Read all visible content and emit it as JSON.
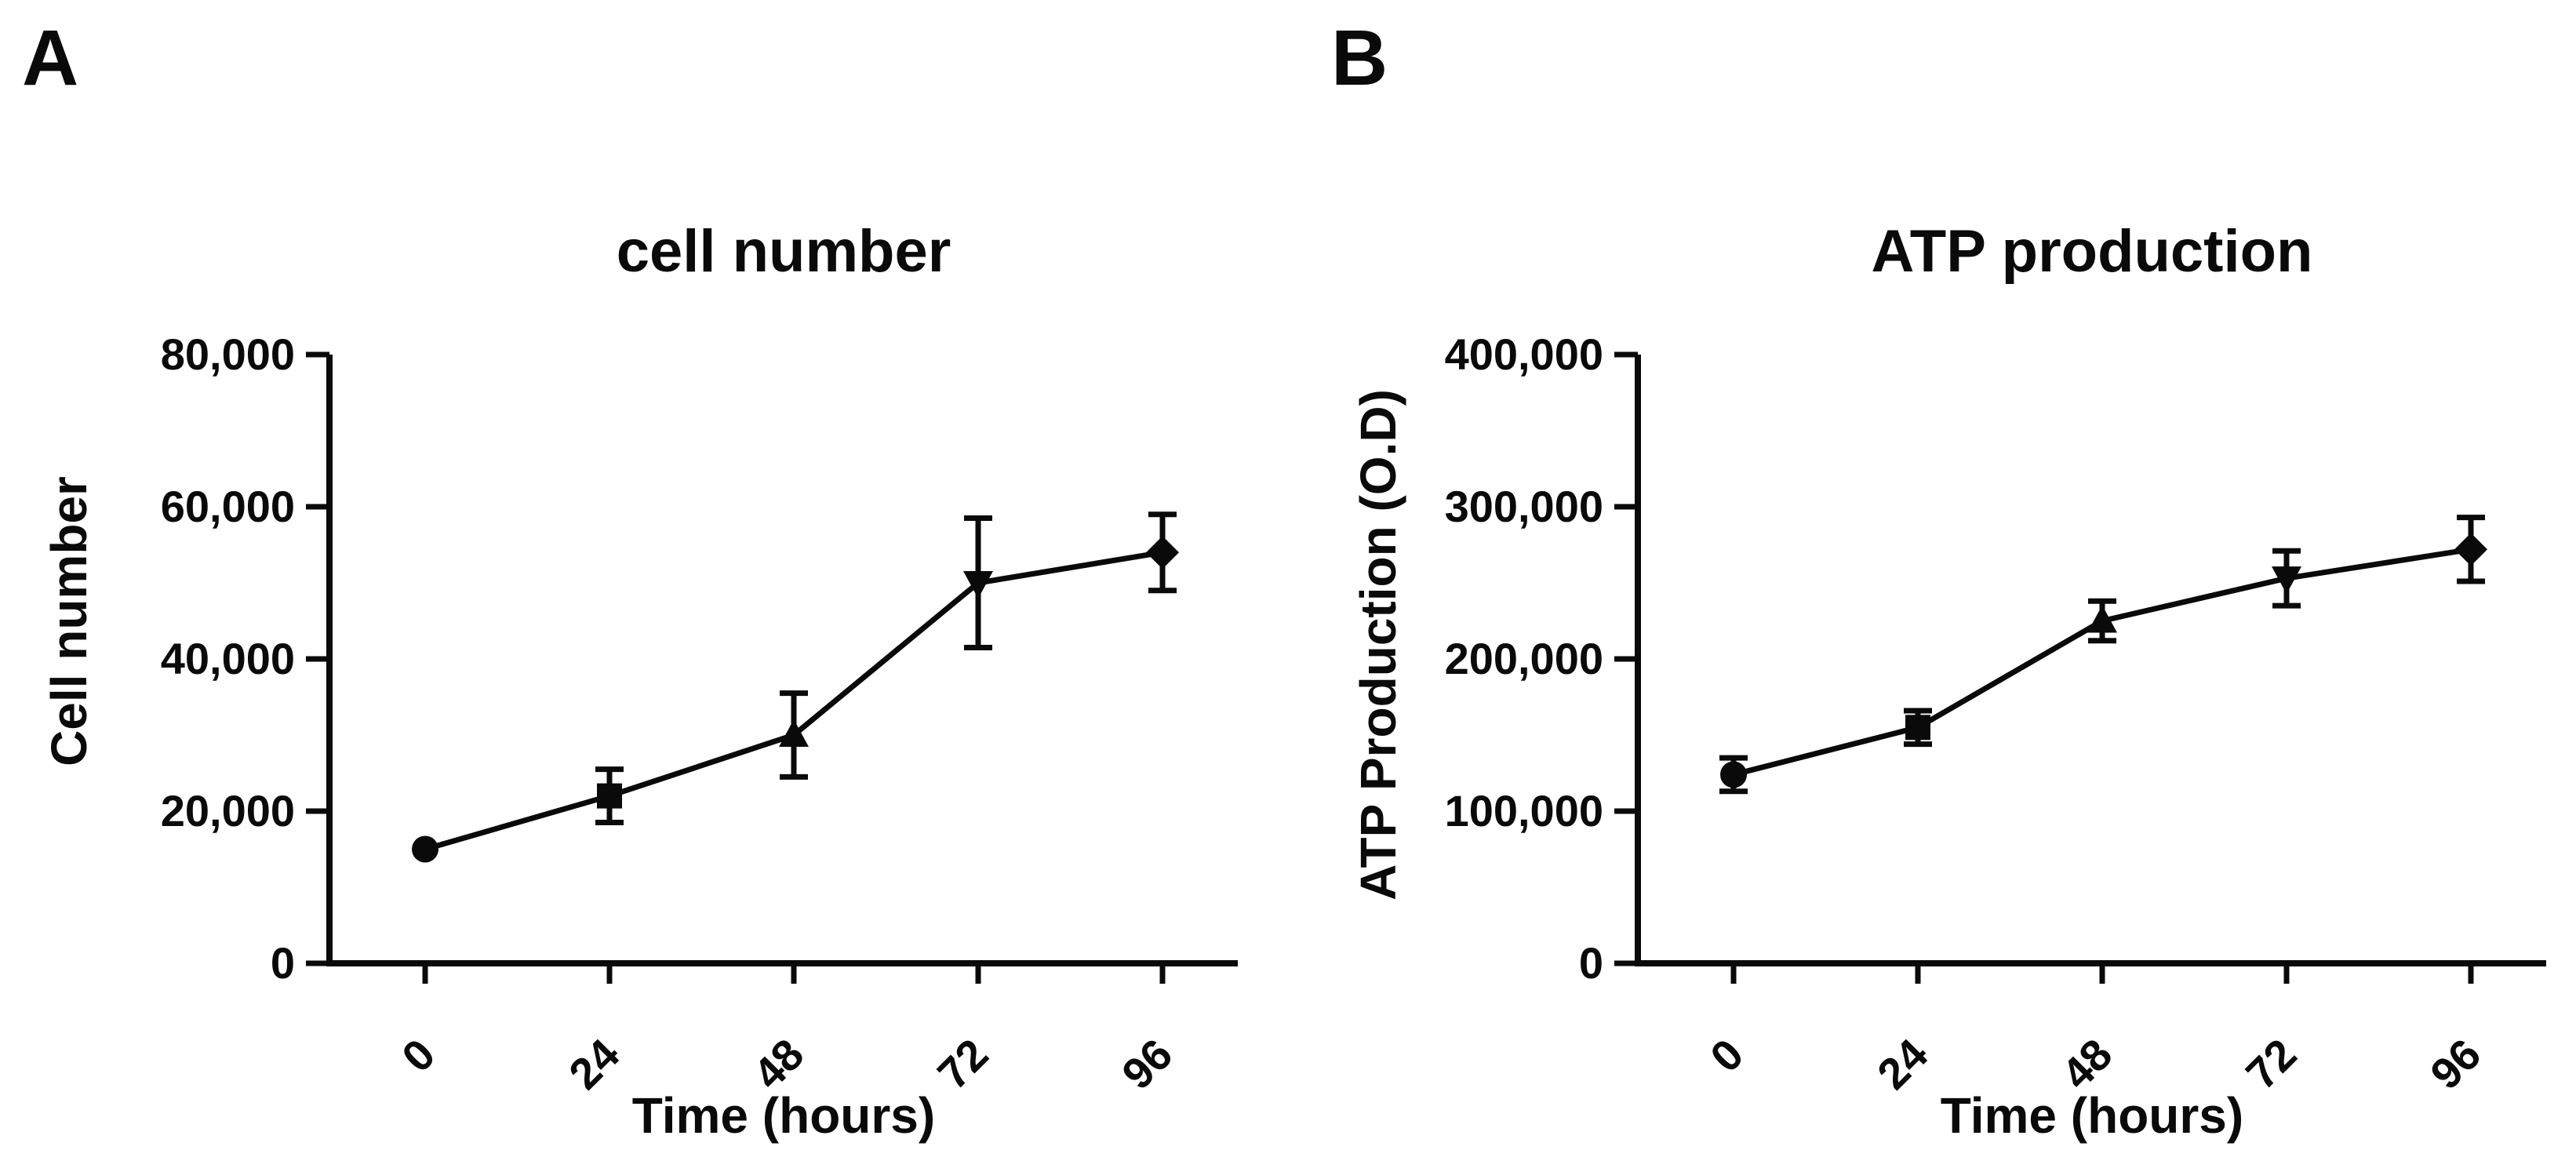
{
  "figure": {
    "background": "#ffffff",
    "ink": "#0a0a0a"
  },
  "chart_data": [
    {
      "type": "line",
      "panel_label": "A",
      "title": "cell number",
      "xlabel": "Time (hours)",
      "ylabel": "Cell number",
      "x": [
        0,
        24,
        48,
        72,
        96
      ],
      "x_tick_labels": [
        "0",
        "24",
        "48",
        "72",
        "96"
      ],
      "y_ticks": [
        0,
        20000,
        40000,
        60000,
        80000
      ],
      "y_tick_labels": [
        "0",
        "20,000",
        "40,000",
        "60,000",
        "80,000"
      ],
      "ylim": [
        0,
        80000
      ],
      "grid": false,
      "legend": false,
      "series": [
        {
          "name": "cell number",
          "values": [
            15000,
            22000,
            30000,
            50000,
            54000
          ],
          "errors": [
            0,
            3500,
            5500,
            8500,
            5000
          ],
          "markers": [
            "circle",
            "square",
            "triangle-up",
            "triangle-down",
            "diamond"
          ],
          "color": "#0a0a0a"
        }
      ]
    },
    {
      "type": "line",
      "panel_label": "B",
      "title": "ATP production",
      "xlabel": "Time (hours)",
      "ylabel": "ATP Production (O.D)",
      "x": [
        0,
        24,
        48,
        72,
        96
      ],
      "x_tick_labels": [
        "0",
        "24",
        "48",
        "72",
        "96"
      ],
      "y_ticks": [
        0,
        100000,
        200000,
        300000,
        400000
      ],
      "y_tick_labels": [
        "0",
        "100,000",
        "200,000",
        "300,000",
        "400,000"
      ],
      "ylim": [
        0,
        400000
      ],
      "grid": false,
      "legend": false,
      "series": [
        {
          "name": "ATP production",
          "values": [
            124000,
            155000,
            225000,
            253000,
            272000
          ],
          "errors": [
            11000,
            11000,
            13000,
            18000,
            21000
          ],
          "markers": [
            "circle",
            "square",
            "triangle-up",
            "triangle-down",
            "diamond"
          ],
          "color": "#0a0a0a"
        }
      ]
    }
  ]
}
